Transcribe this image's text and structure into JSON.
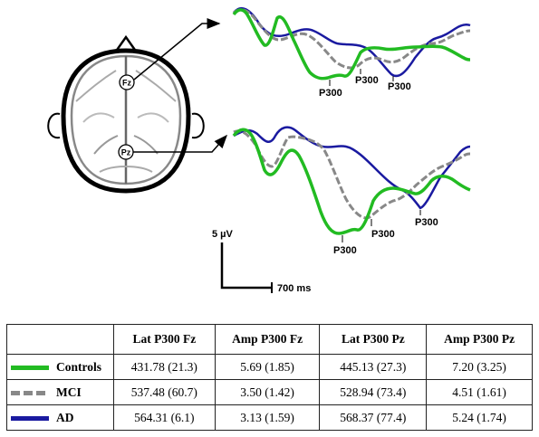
{
  "colors": {
    "controls": "#22bb22",
    "mci": "#888888",
    "ad": "#1a1aa0"
  },
  "electrodes": {
    "fz": "Fz",
    "pz": "Pz"
  },
  "wave_labels": {
    "fz": [
      "P300",
      "P300",
      "P300"
    ],
    "pz": [
      "P300",
      "P300",
      "P300"
    ]
  },
  "scale": {
    "amplitude": "5 µV",
    "time": "700 ms"
  },
  "table": {
    "headers": [
      "",
      "Lat P300 Fz",
      "Amp P300 Fz",
      "Lat P300 Pz",
      "Amp P300 Pz"
    ],
    "rows": [
      {
        "group": "Controls",
        "swatch": "controls",
        "values": [
          "431.78 (21.3)",
          "5.69 (1.85)",
          "445.13 (27.3)",
          "7.20 (3.25)"
        ]
      },
      {
        "group": "MCI",
        "swatch": "mci",
        "values": [
          "537.48 (60.7)",
          "3.50 (1.42)",
          "528.94 (73.4)",
          "4.51 (1.61)"
        ]
      },
      {
        "group": "AD",
        "swatch": "ad",
        "values": [
          "564.31 (6.1)",
          "3.13 (1.59)",
          "568.37 (77.4)",
          "5.24 (1.74)"
        ]
      }
    ]
  }
}
